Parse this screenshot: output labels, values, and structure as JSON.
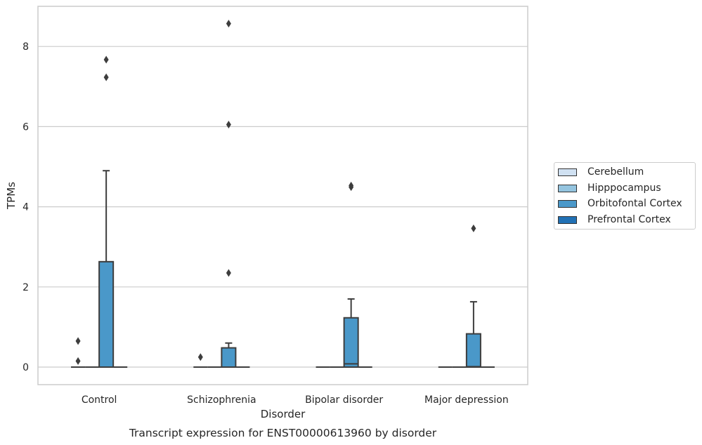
{
  "chart_data": {
    "type": "box",
    "title": "Transcript expression for ENST00000613960 by disorder",
    "xlabel": "Disorder",
    "ylabel": "TPMs",
    "ylim": [
      -0.42,
      9.0
    ],
    "yticks": [
      0,
      2,
      4,
      6,
      8
    ],
    "grid": "horizontal",
    "legend_position": "right",
    "categories": [
      "Control",
      "Schizophrenia",
      "Bipolar disorder",
      "Major depression"
    ],
    "series": [
      {
        "name": "Cerebellum",
        "color": "#d0e1f2",
        "boxes": [
          {
            "q1": 0,
            "median": 0,
            "q3": 0,
            "whisker_low": 0,
            "whisker_high": 0,
            "outliers": [
              0.15,
              0.65
            ]
          },
          {
            "q1": 0,
            "median": 0,
            "q3": 0,
            "whisker_low": 0,
            "whisker_high": 0,
            "outliers": [
              0.25
            ]
          },
          {
            "q1": 0,
            "median": 0,
            "q3": 0,
            "whisker_low": 0,
            "whisker_high": 0,
            "outliers": []
          },
          {
            "q1": 0,
            "median": 0,
            "q3": 0,
            "whisker_low": 0,
            "whisker_high": 0,
            "outliers": []
          }
        ]
      },
      {
        "name": "Hipppocampus",
        "color": "#94c4df",
        "boxes": [
          {
            "q1": 0,
            "median": 0,
            "q3": 0,
            "whisker_low": 0,
            "whisker_high": 0,
            "outliers": []
          },
          {
            "q1": 0,
            "median": 0,
            "q3": 0,
            "whisker_low": 0,
            "whisker_high": 0,
            "outliers": []
          },
          {
            "q1": 0,
            "median": 0,
            "q3": 0,
            "whisker_low": 0,
            "whisker_high": 0,
            "outliers": []
          },
          {
            "q1": 0,
            "median": 0,
            "q3": 0,
            "whisker_low": 0,
            "whisker_high": 0,
            "outliers": []
          }
        ]
      },
      {
        "name": "Orbitofontal Cortex",
        "color": "#4a98c9",
        "boxes": [
          {
            "q1": 0,
            "median": 0,
            "q3": 2.63,
            "whisker_low": 0,
            "whisker_high": 4.9,
            "outliers": [
              7.23,
              7.67
            ]
          },
          {
            "q1": 0,
            "median": 0,
            "q3": 0.48,
            "whisker_low": 0,
            "whisker_high": 0.6,
            "outliers": [
              2.35,
              6.05,
              8.57
            ]
          },
          {
            "q1": 0,
            "median": 0.08,
            "q3": 1.23,
            "whisker_low": 0,
            "whisker_high": 1.7,
            "outliers": [
              4.49,
              4.53
            ]
          },
          {
            "q1": 0,
            "median": 0.01,
            "q3": 0.83,
            "whisker_low": 0,
            "whisker_high": 1.63,
            "outliers": [
              3.46
            ]
          }
        ]
      },
      {
        "name": "Prefrontal Cortex",
        "color": "#2171b5",
        "boxes": [
          {
            "q1": 0,
            "median": 0,
            "q3": 0,
            "whisker_low": 0,
            "whisker_high": 0,
            "outliers": []
          },
          {
            "q1": 0,
            "median": 0,
            "q3": 0,
            "whisker_low": 0,
            "whisker_high": 0,
            "outliers": []
          },
          {
            "q1": 0,
            "median": 0,
            "q3": 0,
            "whisker_low": 0,
            "whisker_high": 0,
            "outliers": []
          },
          {
            "q1": 0,
            "median": 0,
            "q3": 0,
            "whisker_low": 0,
            "whisker_high": 0,
            "outliers": []
          }
        ]
      }
    ]
  }
}
